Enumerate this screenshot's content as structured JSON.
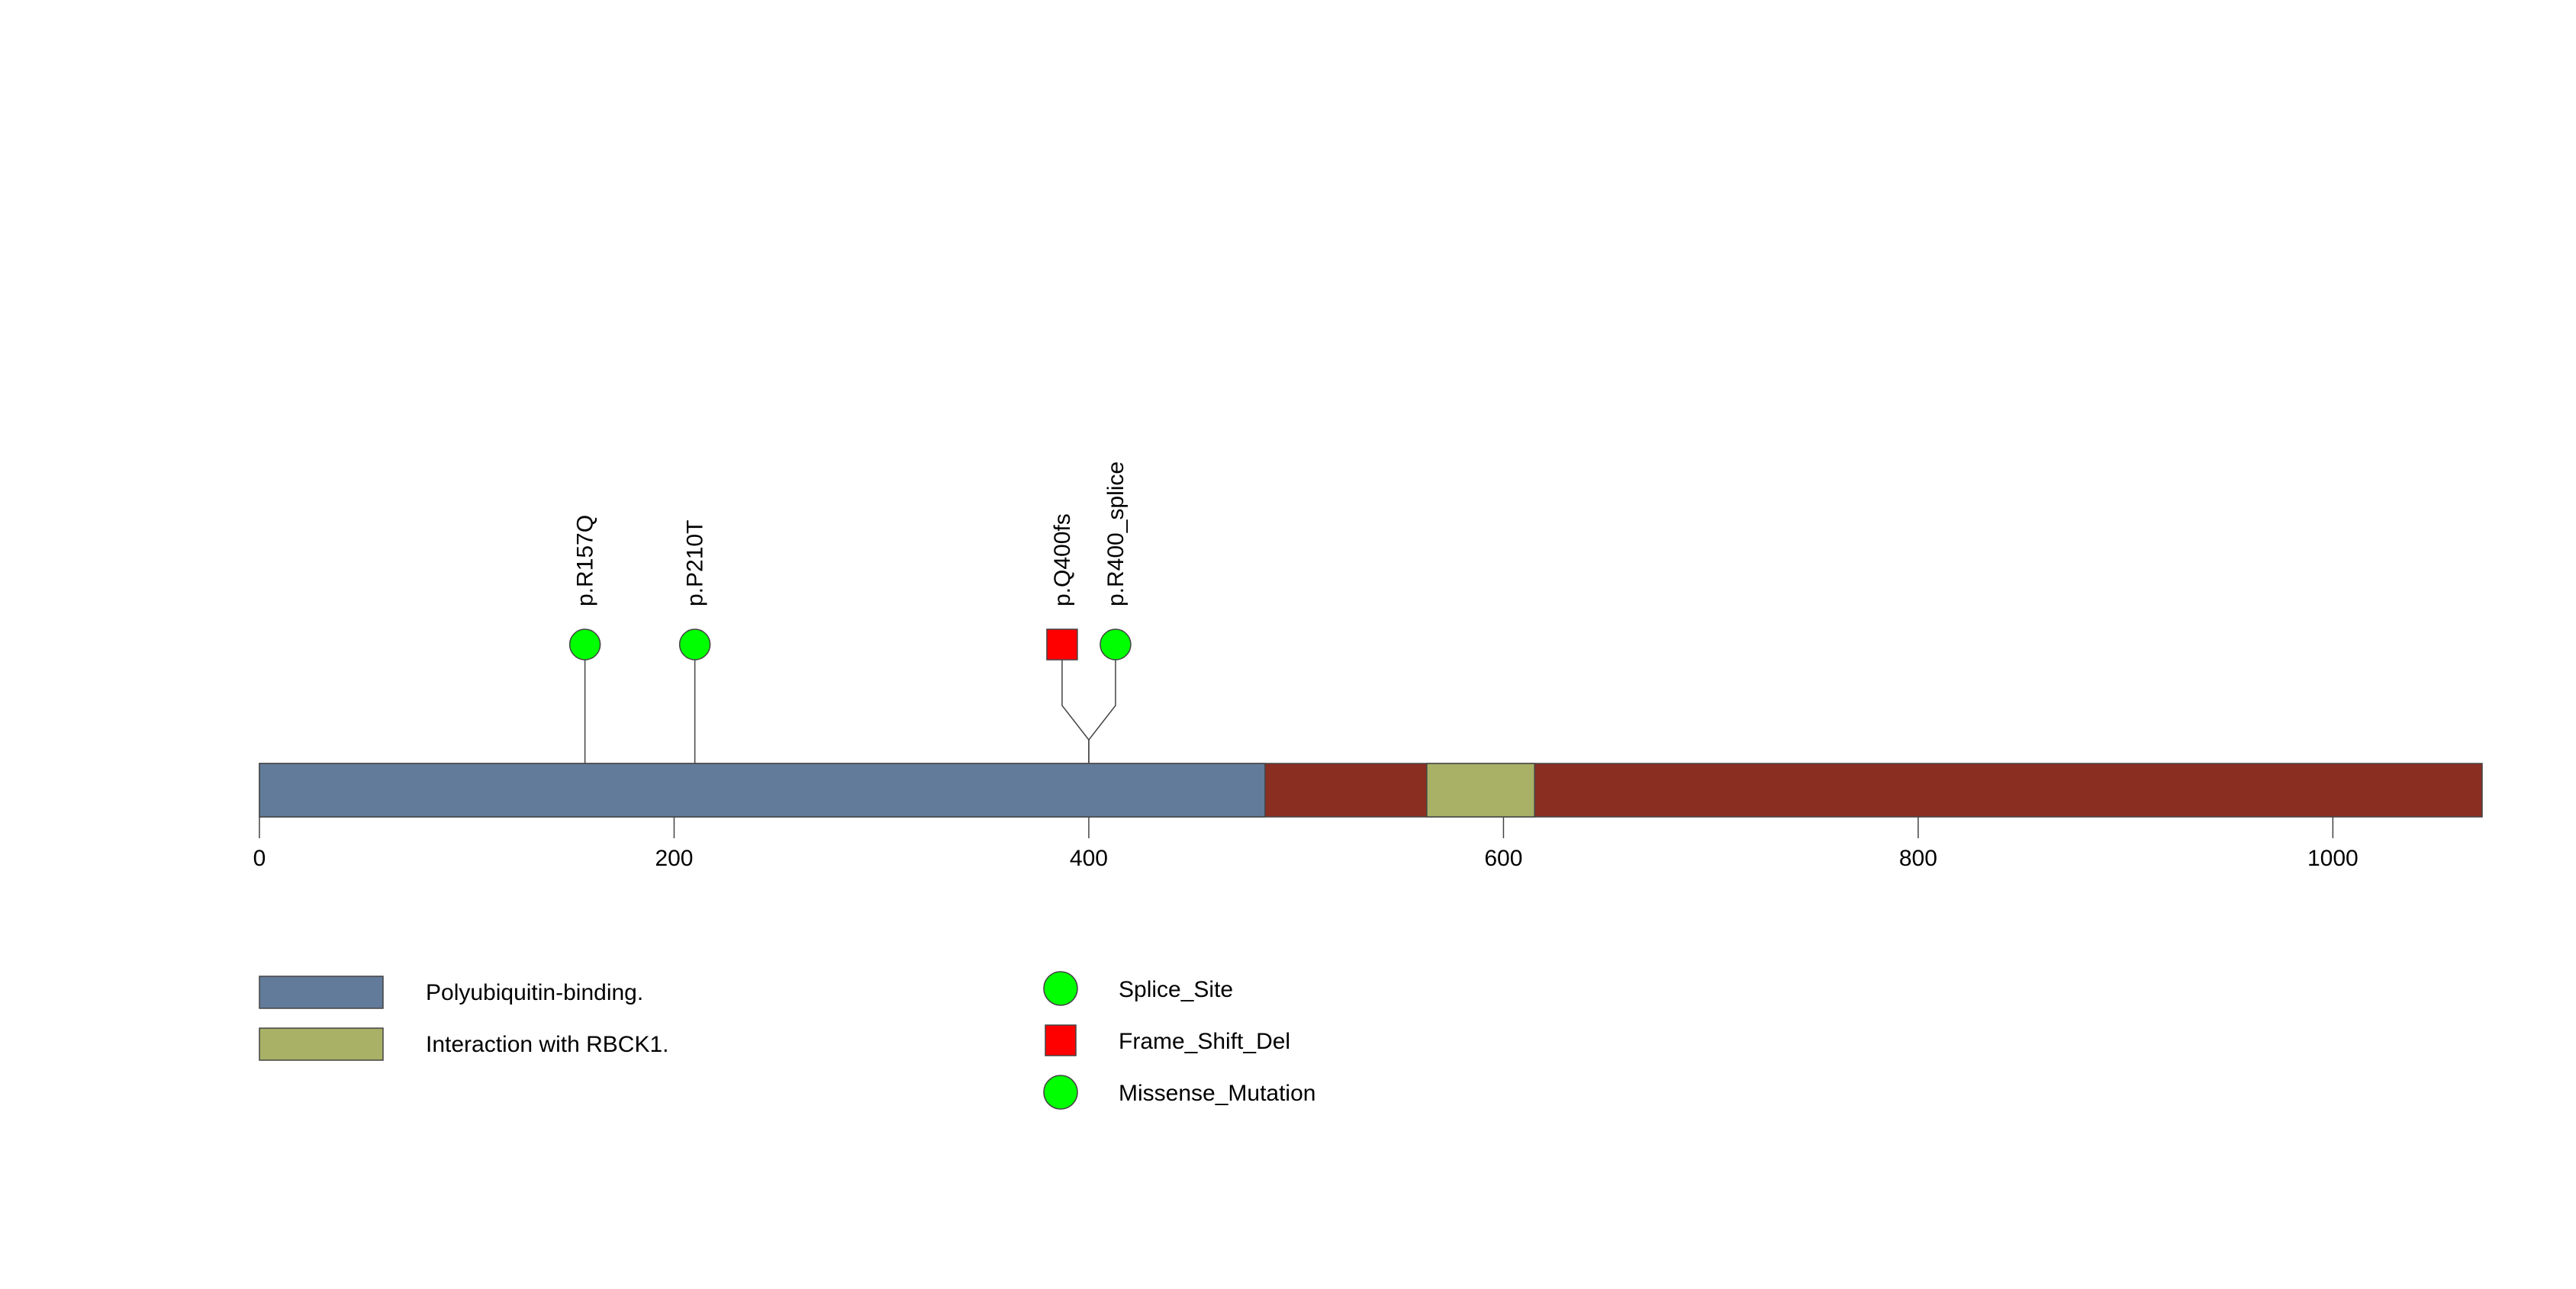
{
  "chart_data": {
    "type": "lollipop",
    "protein_length": 1072,
    "x_axis": {
      "range": [
        0,
        1072
      ],
      "ticks": [
        0,
        200,
        400,
        600,
        800,
        1000
      ]
    },
    "backbone_color": "#8b2e22",
    "domains": [
      {
        "name": "Polyubiquitin-binding.",
        "start": 0,
        "end": 485,
        "color": "#627b9a"
      },
      {
        "name": "Interaction with RBCK1.",
        "start": 563,
        "end": 615,
        "color": "#a8b166"
      }
    ],
    "mutations": [
      {
        "label": "p.R157Q",
        "position": 157,
        "type": "Missense_Mutation",
        "shape": "circle",
        "color": "#00ff00"
      },
      {
        "label": "p.P210T",
        "position": 210,
        "type": "Missense_Mutation",
        "shape": "circle",
        "color": "#00ff00"
      },
      {
        "label": "p.Q400fs",
        "position": 400,
        "type": "Frame_Shift_Del",
        "shape": "square",
        "color": "#ff0000"
      },
      {
        "label": "p.R400_splice",
        "position": 400,
        "type": "Splice_Site",
        "shape": "circle",
        "color": "#00ff00"
      }
    ],
    "legend": {
      "domains": [
        {
          "label": "Polyubiquitin-binding.",
          "color": "#627b9a"
        },
        {
          "label": "Interaction with RBCK1.",
          "color": "#a8b166"
        }
      ],
      "mutation_types": [
        {
          "label": "Splice_Site",
          "shape": "circle",
          "color": "#00ff00"
        },
        {
          "label": "Frame_Shift_Del",
          "shape": "square",
          "color": "#ff0000"
        },
        {
          "label": "Missense_Mutation",
          "shape": "circle",
          "color": "#00ff00"
        }
      ]
    }
  }
}
